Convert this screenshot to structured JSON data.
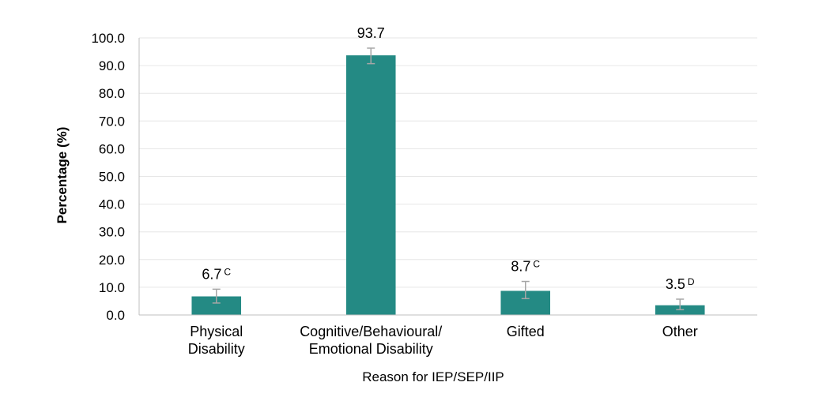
{
  "chart_data": {
    "type": "bar",
    "title": "",
    "xlabel": "Reason for IEP/SEP/IIP",
    "ylabel": "Percentage (%)",
    "ylim": [
      0,
      100
    ],
    "yticks": [
      "0.0",
      "10.0",
      "20.0",
      "30.0",
      "40.0",
      "50.0",
      "60.0",
      "70.0",
      "80.0",
      "90.0",
      "100.0"
    ],
    "grid": true,
    "legend": "none",
    "bar_color": "#248a84",
    "error_bar_color": "#a6a6a6",
    "categories": [
      [
        "Physical",
        "Disability"
      ],
      [
        "Cognitive/Behavioural/",
        "Emotional Disability"
      ],
      [
        "Gifted"
      ],
      [
        "Other"
      ]
    ],
    "values": [
      6.7,
      93.7,
      8.7,
      3.5
    ],
    "error_low": [
      4.3,
      90.7,
      5.9,
      1.9
    ],
    "error_high": [
      9.3,
      96.3,
      12.1,
      5.7
    ],
    "labels": [
      "6.7",
      "93.7",
      "8.7",
      "3.5"
    ],
    "label_flags": [
      "C",
      "",
      "C",
      "D"
    ]
  }
}
